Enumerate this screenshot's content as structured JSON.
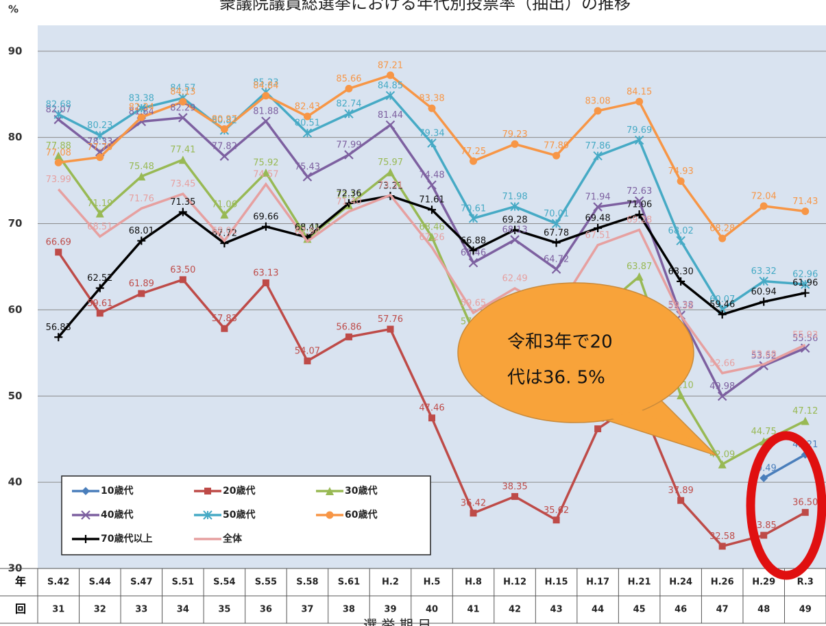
{
  "chart_data": {
    "type": "line",
    "title": "衆議院議員総選挙における年代別投票率（抽出）の推移",
    "y_label": "%",
    "x_label": "選 挙 期 日",
    "row_labels": [
      "年",
      "回"
    ],
    "categories": [
      "S.42",
      "S.44",
      "S.47",
      "S.51",
      "S.54",
      "S.55",
      "S.58",
      "S.61",
      "H.2",
      "H.5",
      "H.8",
      "H.12",
      "H.15",
      "H.17",
      "H.21",
      "H.24",
      "H.26",
      "H.29",
      "R.3"
    ],
    "election_numbers": [
      31,
      32,
      33,
      34,
      35,
      36,
      37,
      38,
      39,
      40,
      41,
      42,
      43,
      44,
      45,
      46,
      47,
      48,
      49
    ],
    "ylim": [
      30,
      93
    ],
    "yticks": [
      30,
      40,
      50,
      60,
      70,
      80,
      90
    ],
    "grid": true,
    "legend": "lower left",
    "series": [
      {
        "name": "10歳代",
        "color": "#4a7ebb",
        "marker": "diamond",
        "values": [
          null,
          null,
          null,
          null,
          null,
          null,
          null,
          null,
          null,
          null,
          null,
          null,
          null,
          null,
          null,
          null,
          null,
          40.49,
          43.21
        ],
        "value_labels": [
          null,
          null,
          null,
          null,
          null,
          null,
          null,
          null,
          null,
          null,
          null,
          null,
          null,
          null,
          null,
          null,
          null,
          "40.49",
          "43.21"
        ]
      },
      {
        "name": "20歳代",
        "color": "#be4b48",
        "marker": "square",
        "values": [
          66.69,
          59.61,
          61.89,
          63.5,
          57.83,
          63.13,
          54.07,
          56.86,
          57.76,
          47.46,
          36.42,
          38.35,
          35.62,
          46.2,
          49.45,
          37.89,
          32.58,
          33.85,
          36.5
        ],
        "value_labels": [
          "66.69",
          "59.61",
          "61.89",
          "63.50",
          "57.83",
          "63.13",
          "54.07",
          "56.86",
          "57.76",
          "47.46",
          "36.42",
          "38.35",
          "35.62",
          "46.20",
          "49.45",
          "37.89",
          "32.58",
          "33.85",
          "36.50"
        ]
      },
      {
        "name": "30歳代",
        "color": "#98b954",
        "marker": "triangle",
        "values": [
          77.88,
          71.19,
          75.48,
          77.41,
          71.06,
          75.92,
          68.25,
          72.15,
          75.97,
          68.46,
          57.49,
          56.82,
          50.72,
          59.79,
          63.87,
          50.1,
          42.09,
          44.75,
          47.12
        ],
        "value_labels": [
          "77.88",
          "71.19",
          "75.48",
          "77.41",
          "71.06",
          "75.92",
          "68.25",
          "72.15",
          "75.97",
          "68.46",
          "57.49",
          "56.82",
          "50.72",
          "59.79",
          "63.87",
          "50.10",
          "42.09",
          "44.75",
          "47.12"
        ]
      },
      {
        "name": "40歳代",
        "color": "#7d60a0",
        "marker": "x",
        "values": [
          82.07,
          78.33,
          81.84,
          82.29,
          77.82,
          81.88,
          75.43,
          77.99,
          81.44,
          74.48,
          65.46,
          68.13,
          64.72,
          71.94,
          72.63,
          59.38,
          49.98,
          53.52,
          55.56
        ],
        "value_labels": [
          "82.07",
          "78.33",
          "81.84",
          "82.29",
          "77.82",
          "81.88",
          "75.43",
          "77.99",
          "81.44",
          "74.48",
          "65.46",
          "68.13",
          "64.72",
          "71.94",
          "72.63",
          "59.38",
          "49.98",
          "53.52",
          "55.56"
        ]
      },
      {
        "name": "50歳代",
        "color": "#46aac5",
        "marker": "star",
        "values": [
          82.68,
          80.23,
          83.38,
          84.57,
          80.82,
          85.23,
          80.51,
          82.74,
          84.85,
          79.34,
          70.61,
          71.98,
          70.01,
          77.86,
          79.69,
          68.02,
          60.07,
          63.32,
          62.96
        ],
        "value_labels": [
          "82.68",
          "80.23",
          "83.38",
          "84.57",
          "80.82",
          "85.23",
          "80.51",
          "82.74",
          "84.85",
          "79.34",
          "70.61",
          "71.98",
          "70.01",
          "77.86",
          "79.69",
          "68.02",
          "60.07",
          "63.32",
          "62.96"
        ]
      },
      {
        "name": "60歳代",
        "color": "#f79646",
        "marker": "circle",
        "values": [
          77.08,
          77.7,
          82.34,
          84.13,
          80.97,
          84.84,
          82.43,
          85.66,
          87.21,
          83.38,
          77.25,
          79.23,
          77.89,
          83.08,
          84.15,
          74.93,
          68.28,
          72.04,
          71.43
        ],
        "value_labels": [
          "77.08",
          "77.70",
          "82.34",
          "84.13",
          "80.97",
          "84.84",
          "82.43",
          "85.66",
          "87.21",
          "83.38",
          "77.25",
          "79.23",
          "77.89",
          "83.08",
          "84.15",
          "74.93",
          "68.28",
          "72.04",
          "71.43"
        ]
      },
      {
        "name": "70歳代以上",
        "color": "#000000",
        "marker": "plus",
        "values": [
          56.83,
          62.52,
          68.01,
          71.35,
          67.72,
          69.66,
          68.41,
          72.36,
          73.21,
          71.61,
          66.88,
          69.28,
          67.78,
          69.48,
          71.06,
          63.3,
          59.46,
          60.94,
          61.96
        ],
        "value_labels": [
          "56.83",
          "62.52",
          "68.01",
          "71.35",
          "67.72",
          "69.66",
          "68.41",
          "72.36",
          "73.21",
          "71.61",
          "66.88",
          "69.28",
          "67.78",
          "69.48",
          "71.06",
          "63.30",
          "59.46",
          "60.94",
          "61.96"
        ]
      },
      {
        "name": "全体",
        "color": "#e6a0a0",
        "marker": "none",
        "values": [
          73.99,
          68.51,
          71.76,
          73.45,
          68.01,
          74.57,
          67.94,
          71.4,
          73.31,
          67.26,
          59.65,
          62.49,
          59.86,
          67.51,
          69.28,
          59.32,
          52.66,
          53.68,
          55.93
        ],
        "value_labels": [
          "73.99",
          "68.51",
          "71.76",
          "73.45",
          "68.01",
          "74.57",
          "67.94",
          "71.40",
          "73.31",
          "67.26",
          "59.65",
          "62.49",
          "59.86",
          "67.51",
          "69.28",
          "59.32",
          "52.66",
          "53.68",
          "55.93"
        ]
      }
    ],
    "annotation": [
      "令和3年で20",
      "代は36. 5%"
    ]
  }
}
